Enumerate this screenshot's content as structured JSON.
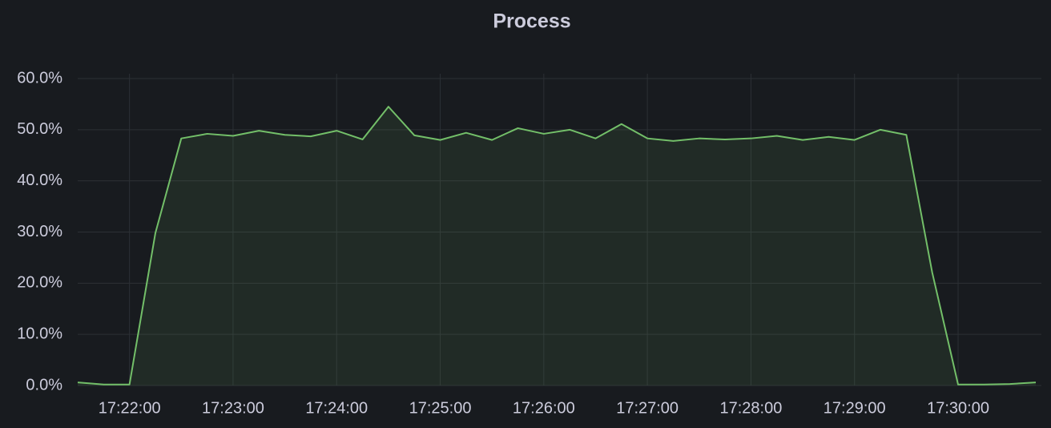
{
  "chart_data": {
    "type": "area",
    "title": "Process",
    "x": [
      "17:21:30",
      "17:21:45",
      "17:22:00",
      "17:22:15",
      "17:22:30",
      "17:22:45",
      "17:23:00",
      "17:23:15",
      "17:23:30",
      "17:23:45",
      "17:24:00",
      "17:24:15",
      "17:24:30",
      "17:24:45",
      "17:25:00",
      "17:25:15",
      "17:25:30",
      "17:25:45",
      "17:26:00",
      "17:26:15",
      "17:26:30",
      "17:26:45",
      "17:27:00",
      "17:27:15",
      "17:27:30",
      "17:27:45",
      "17:28:00",
      "17:28:15",
      "17:28:30",
      "17:28:45",
      "17:29:00",
      "17:29:15",
      "17:29:30",
      "17:29:45",
      "17:30:00",
      "17:30:15",
      "17:30:30",
      "17:30:45"
    ],
    "series": [
      {
        "color": "#73bf69",
        "values": [
          0.6,
          0.2,
          0.2,
          29.8,
          48.3,
          49.2,
          48.8,
          49.8,
          49.0,
          48.7,
          49.8,
          48.1,
          54.5,
          48.9,
          48.0,
          49.4,
          48.0,
          50.3,
          49.2,
          50.0,
          48.3,
          51.1,
          48.3,
          47.8,
          48.3,
          48.1,
          48.3,
          48.8,
          48.0,
          48.6,
          48.0,
          50.0,
          49.0,
          22.1,
          0.2,
          0.2,
          0.3,
          0.6
        ]
      }
    ],
    "xlim": [
      "17:21:30",
      "17:30:45"
    ],
    "xticks": [
      "17:22:00",
      "17:23:00",
      "17:24:00",
      "17:25:00",
      "17:26:00",
      "17:27:00",
      "17:28:00",
      "17:29:00",
      "17:30:00"
    ],
    "ylim": [
      0,
      60
    ],
    "yticks": [
      {
        "value": 0,
        "label": "0.0%"
      },
      {
        "value": 10,
        "label": "10.0%"
      },
      {
        "value": 20,
        "label": "20.0%"
      },
      {
        "value": 30,
        "label": "30.0%"
      },
      {
        "value": 40,
        "label": "40.0%"
      },
      {
        "value": 50,
        "label": "50.0%"
      },
      {
        "value": 60,
        "label": "60.0%"
      }
    ],
    "grid": true
  }
}
